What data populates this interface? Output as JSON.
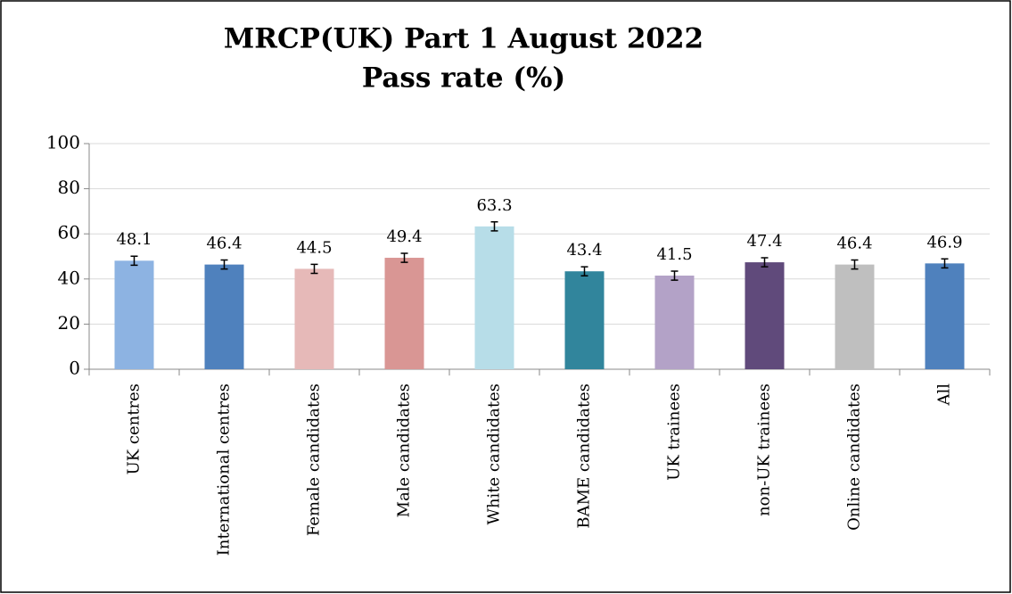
{
  "chart_data": {
    "type": "bar",
    "title": [
      "MRCP(UK) Part 1 August 2022",
      "Pass rate (%)"
    ],
    "categories": [
      "UK centres",
      "International centres",
      "Female candidates",
      "Male candidates",
      "White candidates",
      "BAME candidates",
      "UK trainees",
      "non-UK trainees",
      "Online candidates",
      "All"
    ],
    "values": [
      48.1,
      46.4,
      44.5,
      49.4,
      63.3,
      43.4,
      41.5,
      47.4,
      46.4,
      46.9
    ],
    "errors": [
      2,
      2,
      2,
      2,
      2,
      2,
      2,
      2,
      2,
      2
    ],
    "colors": [
      "#8db3e2",
      "#4f81bd",
      "#e6b9b8",
      "#d99694",
      "#b7dde8",
      "#31859c",
      "#b3a2c7",
      "#604a7b",
      "#bfbfbf",
      "#4f81bd"
    ],
    "ylim": [
      0,
      100
    ],
    "yticks": [
      0,
      20,
      40,
      60,
      80,
      100
    ],
    "grid": true
  }
}
